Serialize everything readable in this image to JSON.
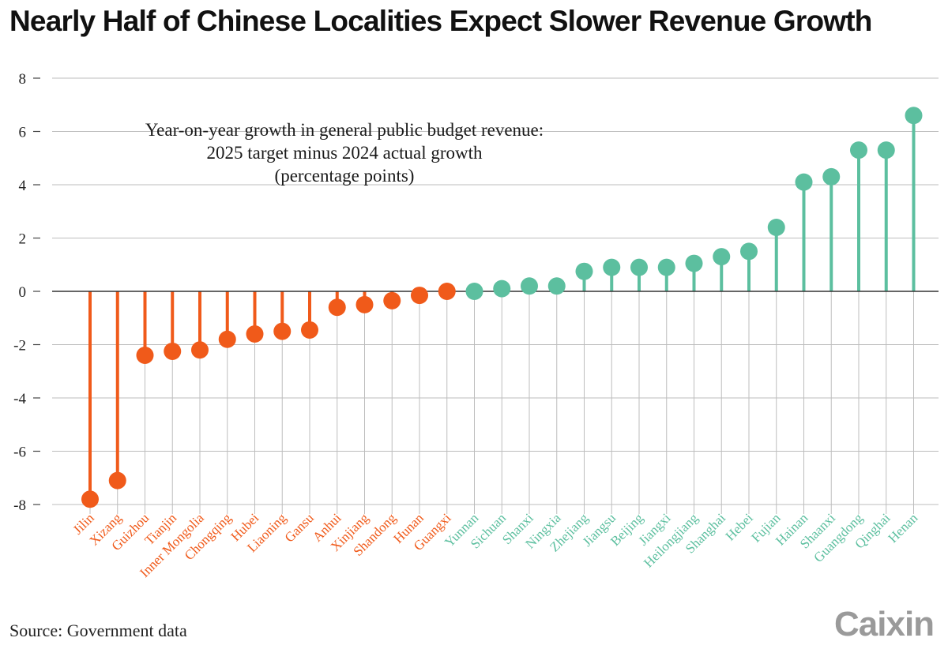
{
  "title": "Nearly Half of Chinese Localities Expect Slower Revenue Growth",
  "source": "Source: Government data",
  "logo": "Caixin",
  "colors": {
    "negative": "#f05a1a",
    "positive": "#5cbf9f",
    "grid": "#bdbdbd",
    "zero": "#333333",
    "text": "#222222"
  },
  "chart_data": {
    "type": "lollipop",
    "title": "",
    "subtitle": [
      "Year-on-year growth in general public budget revenue:",
      "2025 target minus 2024 actual growth",
      "(percentage points)"
    ],
    "xlabel": "",
    "ylabel": "",
    "ylim": [
      -8,
      8
    ],
    "yticks": [
      8,
      6,
      4,
      2,
      0,
      -2,
      -4,
      -6,
      -8
    ],
    "grid": true,
    "categories": [
      "Jilin",
      "Xizang",
      "Guizhou",
      "Tianjin",
      "Inner Mongolia",
      "Chongqing",
      "Hubei",
      "Liaoning",
      "Gansu",
      "Anhui",
      "Xinjiang",
      "Shandong",
      "Hunan",
      "Guangxi",
      "Yunnan",
      "Sichuan",
      "Shanxi",
      "Ningxia",
      "Zhejiang",
      "Jiangsu",
      "Beijing",
      "Jiangxi",
      "Heilongjiang",
      "Shanghai",
      "Hebei",
      "Fujian",
      "Hainan",
      "Shaanxi",
      "Guangdong",
      "Qinghai",
      "Henan"
    ],
    "values": [
      -7.8,
      -7.1,
      -2.4,
      -2.25,
      -2.2,
      -1.8,
      -1.6,
      -1.5,
      -1.45,
      -0.6,
      -0.5,
      -0.35,
      -0.15,
      0.0,
      0.0,
      0.1,
      0.2,
      0.2,
      0.75,
      0.9,
      0.9,
      0.9,
      1.05,
      1.3,
      1.5,
      2.4,
      4.1,
      4.3,
      5.3,
      5.3,
      6.6
    ]
  }
}
